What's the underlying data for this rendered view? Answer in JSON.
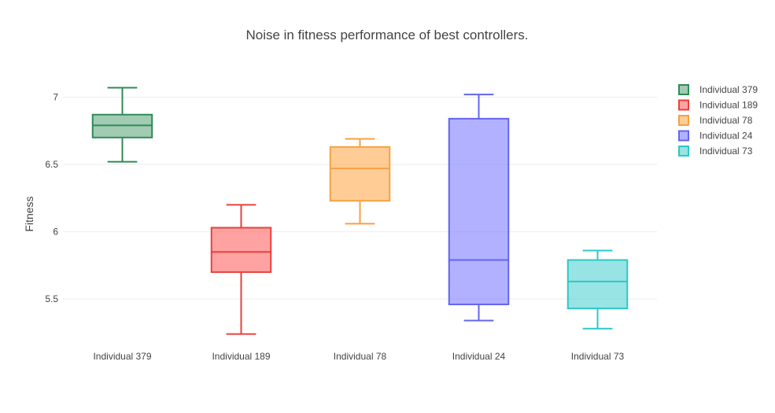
{
  "chart_data": {
    "type": "box",
    "title": "Noise in fitness performance of best controllers.",
    "xlabel": "",
    "ylabel": "Fitness",
    "ylim": [
      5.15,
      7.225
    ],
    "yticks": [
      5.5,
      6,
      6.5,
      7
    ],
    "ytick_labels": [
      "5.5",
      "6",
      "6.5",
      "7"
    ],
    "grid": true,
    "legend_position": "top-right",
    "categories": [
      "Individual 379",
      "Individual 189",
      "Individual 78",
      "Individual 24",
      "Individual 73"
    ],
    "series": [
      {
        "name": "Individual 379",
        "color": "#2e8b57",
        "fill": "rgba(46,139,87,0.45)",
        "min": 6.52,
        "q1": 6.7,
        "median": 6.79,
        "q3": 6.87,
        "max": 7.07
      },
      {
        "name": "Individual 189",
        "color": "#e8413c",
        "fill": "rgba(255,70,70,0.5)",
        "min": 5.24,
        "q1": 5.7,
        "median": 5.85,
        "q3": 6.03,
        "max": 6.2
      },
      {
        "name": "Individual 78",
        "color": "#f5a142",
        "fill": "rgba(255,170,80,0.6)",
        "min": 6.06,
        "q1": 6.23,
        "median": 6.47,
        "q3": 6.63,
        "max": 6.69
      },
      {
        "name": "Individual 24",
        "color": "#6464f0",
        "fill": "rgba(100,100,255,0.5)",
        "min": 5.34,
        "q1": 5.46,
        "median": 5.79,
        "q3": 6.84,
        "max": 7.02
      },
      {
        "name": "Individual 73",
        "color": "#2cc8c8",
        "fill": "rgba(50,200,200,0.5)",
        "min": 5.28,
        "q1": 5.43,
        "median": 5.63,
        "q3": 5.79,
        "max": 5.86
      }
    ]
  }
}
